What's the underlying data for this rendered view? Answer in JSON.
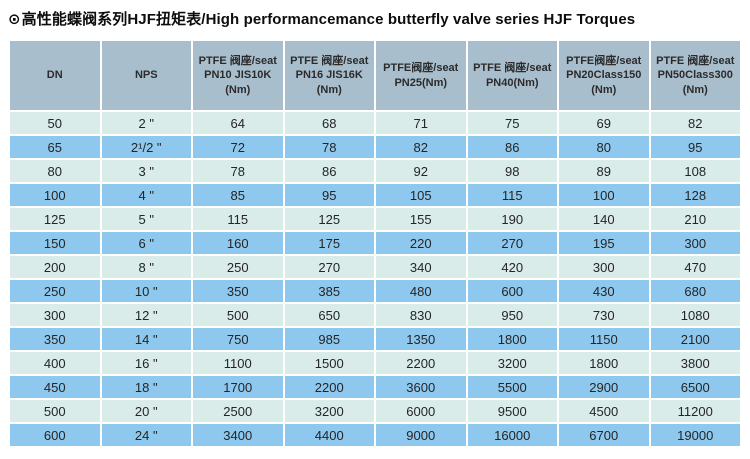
{
  "header": {
    "bullet": "⊙",
    "title": "高性能蝶阀系列HJF扭矩表/High performancemance butterfly valve series HJF Torques"
  },
  "colors": {
    "header_bg": "#a9becd",
    "row_light": "#d9ece9",
    "row_blue": "#8fc8ee",
    "text": "#252525",
    "page_bg": "#ffffff"
  },
  "table": {
    "headers": [
      "DN",
      "NPS",
      "PTFE 阀座/seat\nPN10 JIS10K\n(Nm)",
      "PTFE 阀座/seat\nPN16 JIS16K\n(Nm)",
      "PTFE阀座/seat\nPN25(Nm)",
      "PTFE 阀座/seat\nPN40(Nm)",
      "PTFE阀座/seat\nPN20Class150\n(Nm)",
      "PTFE 阀座/seat\nPN50Class300\n(Nm)"
    ],
    "rows": [
      [
        "50",
        "2 \"",
        "64",
        "68",
        "71",
        "75",
        "69",
        "82"
      ],
      [
        "65",
        "2¹/2 \"",
        "72",
        "78",
        "82",
        "86",
        "80",
        "95"
      ],
      [
        "80",
        "3 \"",
        "78",
        "86",
        "92",
        "98",
        "89",
        "108"
      ],
      [
        "100",
        "4 \"",
        "85",
        "95",
        "105",
        "115",
        "100",
        "128"
      ],
      [
        "125",
        "5 \"",
        "115",
        "125",
        "155",
        "190",
        "140",
        "210"
      ],
      [
        "150",
        "6 \"",
        "160",
        "175",
        "220",
        "270",
        "195",
        "300"
      ],
      [
        "200",
        "8 \"",
        "250",
        "270",
        "340",
        "420",
        "300",
        "470"
      ],
      [
        "250",
        "10 \"",
        "350",
        "385",
        "480",
        "600",
        "430",
        "680"
      ],
      [
        "300",
        "12 \"",
        "500",
        "650",
        "830",
        "950",
        "730",
        "1080"
      ],
      [
        "350",
        "14 \"",
        "750",
        "985",
        "1350",
        "1800",
        "1150",
        "2100"
      ],
      [
        "400",
        "16 \"",
        "1100",
        "1500",
        "2200",
        "3200",
        "1800",
        "3800"
      ],
      [
        "450",
        "18 \"",
        "1700",
        "2200",
        "3600",
        "5500",
        "2900",
        "6500"
      ],
      [
        "500",
        "20 \"",
        "2500",
        "3200",
        "6000",
        "9500",
        "4500",
        "11200"
      ],
      [
        "600",
        "24 \"",
        "3400",
        "4400",
        "9000",
        "16000",
        "6700",
        "19000"
      ]
    ]
  }
}
